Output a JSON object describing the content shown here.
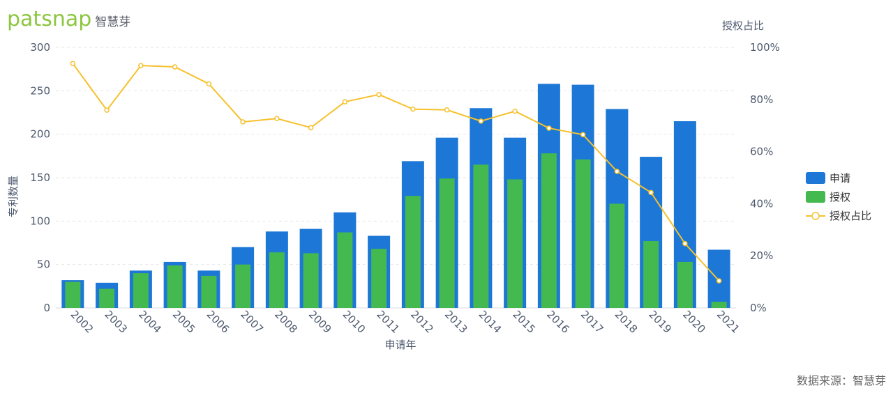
{
  "brand": {
    "logo_text": "patsnap",
    "name": "智慧芽"
  },
  "source_text": "数据来源：智慧芽",
  "colors": {
    "applications": "#1c77d6",
    "grants": "#44b950",
    "ratio": "#f6c12d",
    "axis_text": "#4e5a6e",
    "grid": "#e6e6e6"
  },
  "chart_data": {
    "type": "bar",
    "categories": [
      "2002",
      "2003",
      "2004",
      "2005",
      "2006",
      "2007",
      "2008",
      "2009",
      "2010",
      "2011",
      "2012",
      "2013",
      "2014",
      "2015",
      "2016",
      "2017",
      "2018",
      "2019",
      "2020",
      "2021"
    ],
    "series": [
      {
        "name": "申请",
        "type": "bar",
        "axis": "left",
        "values": [
          32,
          29,
          43,
          53,
          43,
          70,
          88,
          91,
          110,
          83,
          169,
          196,
          230,
          196,
          258,
          257,
          229,
          174,
          215,
          67
        ]
      },
      {
        "name": "授权",
        "type": "bar",
        "axis": "left",
        "values": [
          30,
          22,
          40,
          49,
          37,
          50,
          64,
          63,
          87,
          68,
          129,
          149,
          165,
          148,
          178,
          171,
          120,
          77,
          53,
          7
        ]
      },
      {
        "name": "授权占比",
        "type": "line",
        "axis": "right",
        "values": [
          93.8,
          75.9,
          93.0,
          92.5,
          86.0,
          71.4,
          72.7,
          69.2,
          79.1,
          81.9,
          76.3,
          76.0,
          71.7,
          75.5,
          69.0,
          66.5,
          52.4,
          44.3,
          24.7,
          10.4
        ]
      }
    ],
    "xlabel": "申请年",
    "ylabel": "专利数量",
    "y2label": "授权占比",
    "ylim": [
      0,
      300
    ],
    "y2lim": [
      0,
      100
    ],
    "yticks": [
      "0",
      "50",
      "100",
      "150",
      "200",
      "250",
      "300"
    ],
    "y2ticks": [
      "0%",
      "20%",
      "40%",
      "60%",
      "80%",
      "100%"
    ],
    "grid": true,
    "legend_position": "right"
  }
}
